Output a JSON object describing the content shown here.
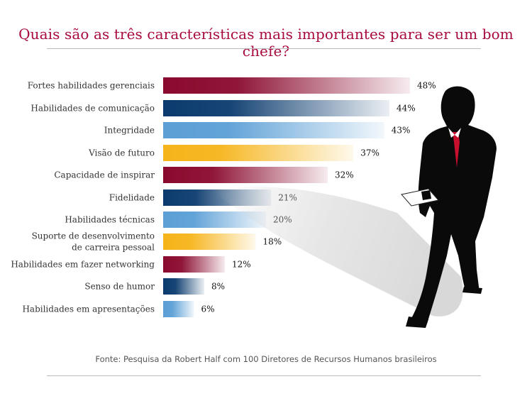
{
  "title": "Quais são as três características mais importantes para ser um bom chefe?",
  "source": "Fonte: Pesquisa da Robert Half com 100 Diretores de Recursos Humanos brasileiros",
  "colors": {
    "title": "#a80a3c",
    "red": "#8a0a2e",
    "navy": "#0b3b6e",
    "lightblue": "#5b9fd6",
    "yellow": "#f6b41a"
  },
  "chart_data": {
    "type": "bar",
    "orientation": "horizontal",
    "title": "Quais são as três características mais importantes para ser um bom chefe?",
    "categories": [
      [
        "Fortes habilidades gerenciais"
      ],
      [
        "Habilidades de comunicação"
      ],
      [
        "Integridade"
      ],
      [
        "Visão de futuro"
      ],
      [
        "Capacidade de inspirar"
      ],
      [
        "Fidelidade"
      ],
      [
        "Habilidades técnicas"
      ],
      [
        "Suporte de desenvolvimento",
        "de carreira pessoal"
      ],
      [
        "Habilidades em fazer networking"
      ],
      [
        "Senso de humor"
      ],
      [
        "Habilidades em apresentações"
      ]
    ],
    "values": [
      48,
      44,
      43,
      37,
      32,
      21,
      20,
      18,
      12,
      8,
      6
    ],
    "value_labels": [
      "48%",
      "44%",
      "43%",
      "37%",
      "32%",
      "21%",
      "20%",
      "18%",
      "12%",
      "8%",
      "6%"
    ],
    "bar_colors": [
      "red",
      "navy",
      "lightblue",
      "yellow",
      "red",
      "navy",
      "lightblue",
      "yellow",
      "red",
      "navy",
      "lightblue"
    ],
    "xlim": [
      0,
      55
    ],
    "grid": false,
    "legend": "none"
  }
}
